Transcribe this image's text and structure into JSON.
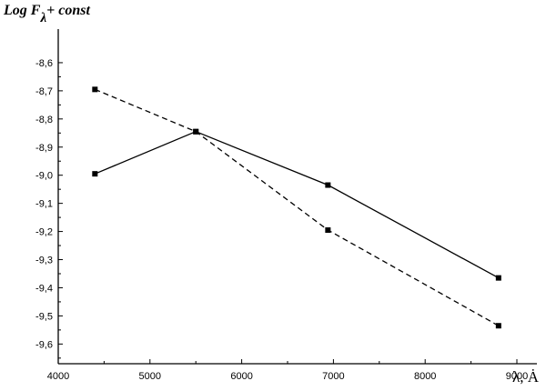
{
  "chart_data": {
    "type": "line",
    "ylabel_parts": {
      "main": "Log F",
      "subscript": "λ",
      "suffix": "+ const"
    },
    "xlabel": "λ, Ȧ",
    "xlim": [
      4000,
      9000
    ],
    "ylim": [
      -9.67,
      -8.5
    ],
    "x_ticks": [
      "4000",
      "5000",
      "6000",
      "7000",
      "8000",
      "9000"
    ],
    "y_ticks": [
      "-8,6",
      "-8,7",
      "-8,8",
      "-8,9",
      "-9,0",
      "-9,1",
      "-9,2",
      "-9,3",
      "-9,4",
      "-9,5",
      "-9,6"
    ],
    "y_tick_values": [
      -8.6,
      -8.7,
      -8.8,
      -8.9,
      -9.0,
      -9.1,
      -9.2,
      -9.3,
      -9.4,
      -9.5,
      -9.6
    ],
    "grid": false,
    "series": [
      {
        "style": "solid",
        "color": "#000000",
        "x": [
          4400,
          5500,
          6940,
          8800
        ],
        "y": [
          -8.995,
          -8.845,
          -9.035,
          -9.365
        ]
      },
      {
        "style": "dashed",
        "color": "#000000",
        "x": [
          4400,
          5500,
          6940,
          8800
        ],
        "y": [
          -8.695,
          -8.845,
          -9.195,
          -9.535
        ]
      }
    ]
  }
}
